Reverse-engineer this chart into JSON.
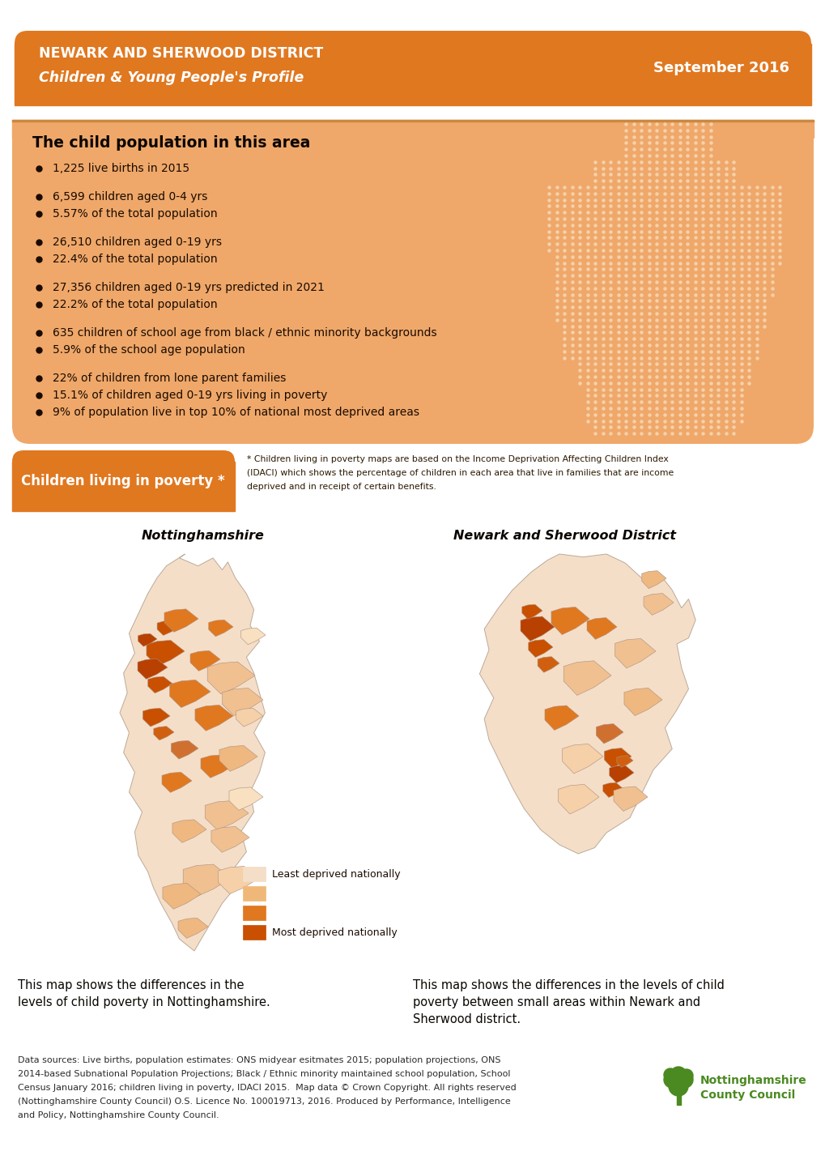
{
  "title_line1": "NEWARK AND SHERWOOD DISTRICT",
  "title_line2": "Children & Young People's Profile",
  "date": "September 2016",
  "header_bg_color": "#E07820",
  "info_bg_color": "#EFA86A",
  "page_bg_color": "#FFFFFF",
  "bullet_points": [
    [
      "1,225 live births in 2015"
    ],
    [
      "6,599 children aged 0-4 yrs",
      "5.57% of the total population"
    ],
    [
      "26,510 children aged 0-19 yrs",
      "22.4% of the total population"
    ],
    [
      "27,356 children aged 0-19 yrs predicted in 2021",
      "22.2% of the total population"
    ],
    [
      "635 children of school age from black / ethnic minority backgrounds",
      "5.9% of the school age population"
    ],
    [
      "22% of children from lone parent families",
      "15.1% of children aged 0-19 yrs living in poverty",
      "9% of population live in top 10% of national most deprived areas"
    ]
  ],
  "section_title": "The child population in this area",
  "poverty_label": "Children living in poverty *",
  "poverty_note_lines": [
    "* Children living in poverty maps are based on the Income Deprivation Affecting Children Index",
    "(IDACI) which shows the percentage of children in each area that live in families that are income",
    "deprived and in receipt of certain benefits."
  ],
  "map_label_left": "Nottinghamshire",
  "map_label_right": "Newark and Sherwood District",
  "legend_colors": [
    "#F5DEC8",
    "#F0B878",
    "#E07820",
    "#C85000"
  ],
  "legend_labels": [
    "Least deprived nationally",
    "",
    "",
    "Most deprived nationally"
  ],
  "caption_left": "This map shows the differences in the\nlevels of child poverty in Nottinghamshire.",
  "caption_right": "This map shows the differences in the levels of child\npoverty between small areas within Newark and\nSherwood district.",
  "footer_lines": [
    "Data sources: Live births, population estimates: ONS midyear esitmates 2015; population projections, ONS",
    "2014-based Subnational Population Projections; Black / Ethnic minority maintained school population, School",
    "Census January 2016; children living in poverty, IDACI 2015.  Map data © Crown Copyright. All rights reserved",
    "(Nottinghamshire County Council) O.S. Licence No. 100019713, 2016. Produced by Performance, Intelligence",
    "and Policy, Nottinghamshire County Council."
  ],
  "org_name": "Nottinghamshire\nCounty Council",
  "text_dark": "#1A0A00",
  "text_white": "#FFFFFF",
  "text_orange": "#E07820",
  "text_green": "#4A8A20"
}
